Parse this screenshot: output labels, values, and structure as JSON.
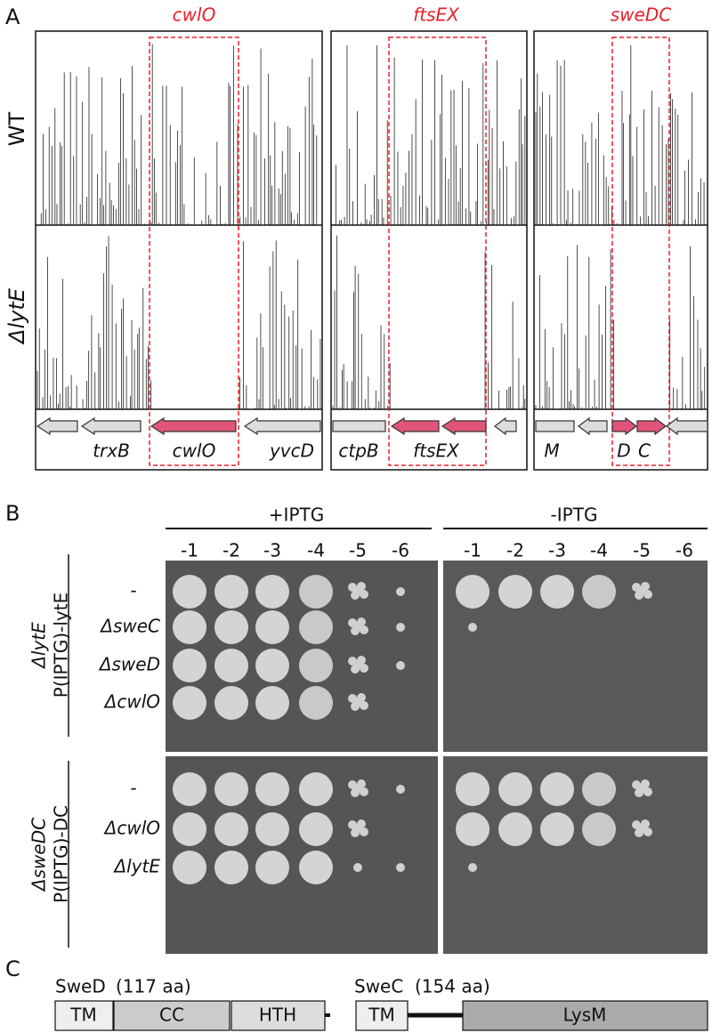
{
  "panel_a": {
    "label": "A",
    "rows": [
      "WT",
      "ΔlytE"
    ],
    "regions": [
      {
        "name": "cwlO",
        "genes": [
          "trxB",
          "cwlO",
          "yvcD"
        ]
      },
      {
        "name": "ftsEX",
        "genes": [
          "ctpB",
          "ftsEX"
        ]
      },
      {
        "name": "sweDC",
        "genes": [
          "M",
          "D",
          "C"
        ]
      }
    ]
  },
  "panel_b": {
    "label": "B",
    "conditions": [
      "+IPTG",
      "-IPTG"
    ],
    "dilutions": [
      "-1",
      "-2",
      "-3",
      "-4",
      "-5",
      "-6"
    ],
    "groups": [
      {
        "strain": "ΔlytE",
        "construct": "P(IPTG)-lytE",
        "rows": [
          "-",
          "ΔsweC",
          "ΔsweD",
          "ΔcwlO"
        ]
      },
      {
        "strain": "ΔsweDC",
        "construct": "P(IPTG)-DC",
        "rows": [
          "-",
          "ΔcwlO",
          "ΔlytE"
        ]
      }
    ]
  },
  "panel_c": {
    "label": "C",
    "proteins": [
      {
        "name": "SweD",
        "length": "(117 aa)",
        "domains": [
          "TM",
          "CC",
          "HTH"
        ]
      },
      {
        "name": "SweC",
        "length": "(154 aa)",
        "domains": [
          "TM",
          "LysM"
        ]
      }
    ]
  }
}
